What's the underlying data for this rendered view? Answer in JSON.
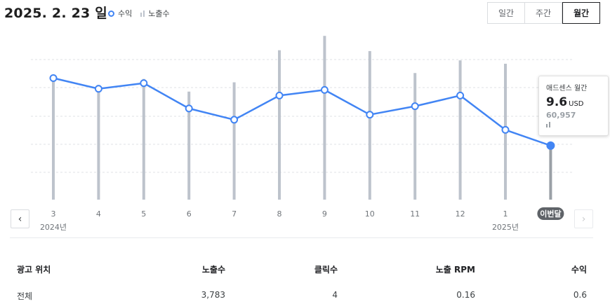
{
  "header": {
    "date": "2025. 2. 23 일",
    "legend_revenue": "수익",
    "legend_impressions": "노출수"
  },
  "period_tabs": [
    {
      "label": "일간",
      "active": false
    },
    {
      "label": "주간",
      "active": false
    },
    {
      "label": "월간",
      "active": true
    }
  ],
  "chart_data": {
    "type": "line",
    "categories": [
      "3",
      "4",
      "5",
      "6",
      "7",
      "8",
      "9",
      "10",
      "11",
      "12",
      "1",
      "이번달"
    ],
    "year_labels": [
      {
        "label": "2024년",
        "at_category": "3"
      },
      {
        "label": "2025년",
        "at_category": "1"
      }
    ],
    "series": [
      {
        "name": "수익",
        "type": "line",
        "color": "#4285f4",
        "values": [
          21.6,
          19.7,
          20.7,
          16.2,
          14.2,
          18.5,
          19.5,
          15.1,
          16.6,
          18.5,
          12.4,
          9.6
        ]
      },
      {
        "name": "노출수",
        "type": "bar",
        "color": "#bdc3cc",
        "values": [
          145000,
          136000,
          143000,
          128000,
          139000,
          177000,
          194000,
          176000,
          150000,
          165000,
          161000,
          60957
        ]
      }
    ],
    "ylim_revenue": [
      0,
      30
    ],
    "ylim_impressions": [
      0,
      200000
    ],
    "grid": true,
    "highlight_index": 11
  },
  "tooltip": {
    "title": "애드센스 월간",
    "value": "9.6",
    "unit": "USD",
    "impressions": "60,957"
  },
  "nav": {
    "prev_icon": "chevron-left-icon",
    "next_icon": "chevron-right-icon"
  },
  "table": {
    "headers": [
      "광고 위치",
      "노출수",
      "클릭수",
      "노출 RPM",
      "수익"
    ],
    "rows": [
      [
        "전체",
        "3,783",
        "4",
        "0.16",
        "0.6"
      ]
    ]
  }
}
